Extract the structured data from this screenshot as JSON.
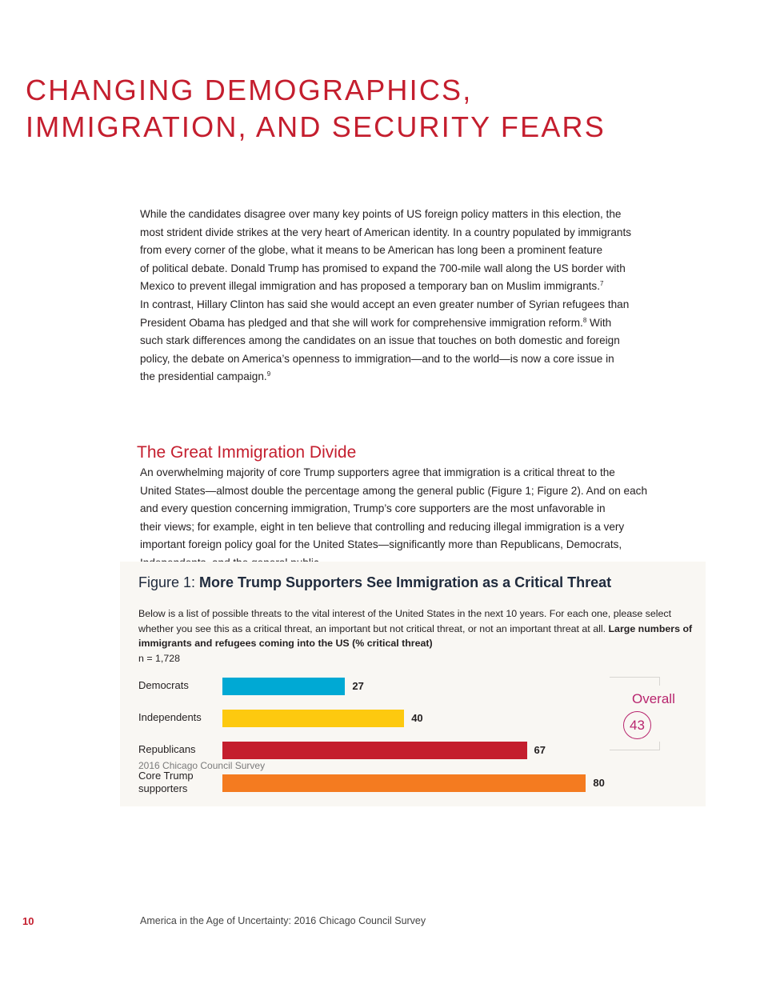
{
  "title_lines": [
    "CHANGING DEMOGRAPHICS,",
    "IMMIGRATION, AND SECURITY FEARS"
  ],
  "intro_lines": [
    [
      {
        "t": "While the candidates disagree over many key points of US foreign policy matters in this election, the"
      }
    ],
    [
      {
        "t": "most strident divide strikes at the very heart of American identity. In a country populated by immigrants"
      }
    ],
    [
      {
        "t": "from every corner of the globe, what it means to be American has long been a prominent feature"
      }
    ],
    [
      {
        "t": "of political debate. Donald Trump has promised to expand the 700-mile wall along the US border with"
      }
    ],
    [
      {
        "t": "Mexico to prevent illegal immigration and has proposed a temporary ban on Muslim immigrants."
      },
      {
        "sup": "7"
      }
    ],
    [
      {
        "t": "In contrast, Hillary Clinton has said she would accept an even greater number of Syrian refugees than"
      }
    ],
    [
      {
        "t": "President Obama has pledged and that she will work for comprehensive immigration reform."
      },
      {
        "sup": "8"
      },
      {
        "t": " With"
      }
    ],
    [
      {
        "t": "such stark differences among the candidates on an issue that touches on both domestic and foreign"
      }
    ],
    [
      {
        "t": "policy, the debate on America’s openness to immigration—and to the world—is now a core issue in"
      }
    ],
    [
      {
        "t": "the presidential campaign."
      },
      {
        "sup": "9"
      }
    ]
  ],
  "section_heading": "The Great Immigration Divide",
  "section_lines": [
    [
      {
        "t": "An overwhelming majority of core Trump supporters agree that immigration is a critical threat to the"
      }
    ],
    [
      {
        "t": "United States—almost double the percentage among the general public (Figure 1; Figure 2). And on each"
      }
    ],
    [
      {
        "t": "and every question concerning immigration, Trump’s core supporters are the most unfavorable in"
      }
    ],
    [
      {
        "t": "their views; for example, eight in ten believe that controlling and reducing illegal immigration is a very"
      }
    ],
    [
      {
        "t": "important foreign policy goal for the United States—significantly more than Republicans, Democrats,"
      }
    ],
    [
      {
        "t": "Independents, and the general public."
      }
    ]
  ],
  "figure": {
    "label": "Figure 1: ",
    "title": "More Trump Supporters See Immigration as a Critical Threat",
    "question": "Below is a list of possible threats to the vital interest of the United States in the next 10 years. For each one, please select whether you see this as a critical threat, an important but not critical threat, or not an important threat at all. ",
    "question_bold": "Large numbers of immigrants and refugees coming into the US",
    "question_unit": " (% critical threat)",
    "n": "n = 1,728",
    "source": "2016 Chicago Council Survey",
    "overall_label": "Overall",
    "overall_value": "43"
  },
  "chart_data": {
    "type": "bar",
    "orientation": "horizontal",
    "title": "More Trump Supporters See Immigration as a Critical Threat",
    "categories": [
      "Democrats",
      "Independents",
      "Republicans",
      "Core Trump supporters"
    ],
    "values": [
      27,
      40,
      67,
      80
    ],
    "colors": [
      "#00a9d4",
      "#fdc90f",
      "#c41e2e",
      "#f47b20"
    ],
    "xlim": [
      0,
      100
    ],
    "grid": false,
    "annotation": {
      "label": "Overall",
      "value": 43
    }
  },
  "footer": {
    "page_number": "10",
    "text": "America in the Age of Uncertainty: 2016 Chicago Council Survey"
  }
}
